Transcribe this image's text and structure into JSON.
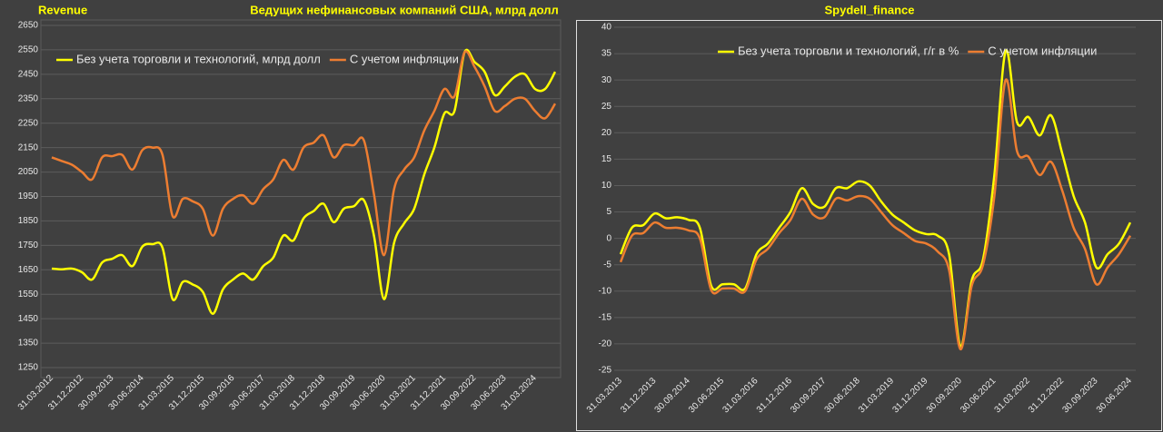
{
  "chart_data": [
    {
      "type": "line",
      "annotation": "Revenue",
      "title": "Ведущих нефинансовых компаний США, млрд долл",
      "categories": [
        "31.03.2012",
        null,
        null,
        "31.12.2012",
        null,
        null,
        "30.09.2013",
        null,
        null,
        "30.06.2014",
        null,
        null,
        "31.03.2015",
        null,
        null,
        "31.12.2015",
        null,
        null,
        "30.09.2016",
        null,
        null,
        "30.06.2017",
        null,
        null,
        "31.03.2018",
        null,
        null,
        "31.12.2018",
        null,
        null,
        "30.09.2019",
        null,
        null,
        "30.06.2020",
        null,
        null,
        "31.03.2021",
        null,
        null,
        "31.12.2021",
        null,
        null,
        "30.09.2022",
        null,
        null,
        "30.06.2023",
        null,
        null,
        "31.03.2024",
        null,
        null
      ],
      "series": [
        {
          "name": "Без учета торговли и технологий, млрд долл",
          "color": "#ffff00",
          "values": [
            1655,
            1652,
            1655,
            1640,
            1610,
            1680,
            1695,
            1710,
            1665,
            1745,
            1755,
            1740,
            1530,
            1600,
            1590,
            1560,
            1470,
            1570,
            1610,
            1635,
            1610,
            1665,
            1700,
            1790,
            1770,
            1860,
            1890,
            1920,
            1845,
            1900,
            1910,
            1935,
            1790,
            1530,
            1760,
            1840,
            1900,
            2040,
            2150,
            2290,
            2300,
            2540,
            2500,
            2460,
            2365,
            2400,
            2440,
            2450,
            2390,
            2390,
            2460
          ]
        },
        {
          "name": "С учетом инфляции",
          "color": "#ed7d31",
          "values": [
            2110,
            2095,
            2080,
            2050,
            2020,
            2110,
            2115,
            2120,
            2060,
            2140,
            2150,
            2120,
            1870,
            1940,
            1930,
            1900,
            1790,
            1900,
            1940,
            1955,
            1920,
            1980,
            2020,
            2100,
            2060,
            2150,
            2170,
            2200,
            2110,
            2160,
            2160,
            2180,
            1960,
            1710,
            1980,
            2060,
            2110,
            2220,
            2300,
            2390,
            2360,
            2540,
            2480,
            2400,
            2300,
            2320,
            2350,
            2350,
            2300,
            2270,
            2330
          ]
        }
      ],
      "ylim": [
        1250,
        2650
      ],
      "yticks": [
        1250,
        1350,
        1450,
        1550,
        1650,
        1750,
        1850,
        1950,
        2050,
        2150,
        2250,
        2350,
        2450,
        2550,
        2650
      ],
      "grid": true,
      "legend": "upper left"
    },
    {
      "type": "line",
      "title": "Spydell_finance",
      "categories": [
        "31.03.2013",
        null,
        null,
        "31.12.2013",
        null,
        null,
        "30.09.2014",
        null,
        null,
        "30.06.2015",
        null,
        null,
        "31.03.2016",
        null,
        null,
        "31.12.2016",
        null,
        null,
        "30.09.2017",
        null,
        null,
        "30.06.2018",
        null,
        null,
        "31.03.2019",
        null,
        null,
        "31.12.2019",
        null,
        null,
        "30.09.2020",
        null,
        null,
        "30.06.2021",
        null,
        null,
        "31.03.2022",
        null,
        null,
        "31.12.2022",
        null,
        null,
        "30.09.2023",
        null,
        null,
        "30.06.2024"
      ],
      "series": [
        {
          "name": "Без учета торговли и технологий, г/г в %",
          "color": "#ffff00",
          "values": [
            -3,
            2,
            2.5,
            4.7,
            3.8,
            4,
            3.5,
            2,
            -9,
            -8.7,
            -8.7,
            -9.5,
            -3,
            -1,
            2,
            5,
            9.5,
            6.5,
            6,
            9.5,
            9.5,
            10.8,
            10,
            7,
            4.5,
            3,
            1.5,
            0.8,
            0.5,
            -3,
            -20.5,
            -8,
            -4,
            12,
            35.5,
            22,
            23,
            19.5,
            23.3,
            16,
            8,
            3,
            -5.5,
            -3,
            -1,
            3
          ]
        },
        {
          "name": "С учетом инфляции",
          "color": "#ed7d31",
          "values": [
            -4.5,
            0.5,
            1,
            3,
            2,
            2,
            1.5,
            0,
            -9.8,
            -9.5,
            -9.5,
            -10,
            -4,
            -2,
            1,
            3.5,
            7.5,
            4.5,
            4,
            7.5,
            7.2,
            8,
            7.5,
            5,
            2.5,
            1,
            -0.5,
            -1,
            -2.5,
            -6,
            -21,
            -9,
            -5,
            8,
            30,
            16.5,
            15.5,
            12,
            14.5,
            9,
            2,
            -2,
            -8.7,
            -5.5,
            -3,
            0.5
          ]
        }
      ],
      "ylim": [
        -25,
        40
      ],
      "yticks": [
        -25,
        -20,
        -15,
        -10,
        -5,
        0,
        5,
        10,
        15,
        20,
        25,
        30,
        35,
        40
      ],
      "grid": true,
      "legend": "upper right"
    }
  ]
}
